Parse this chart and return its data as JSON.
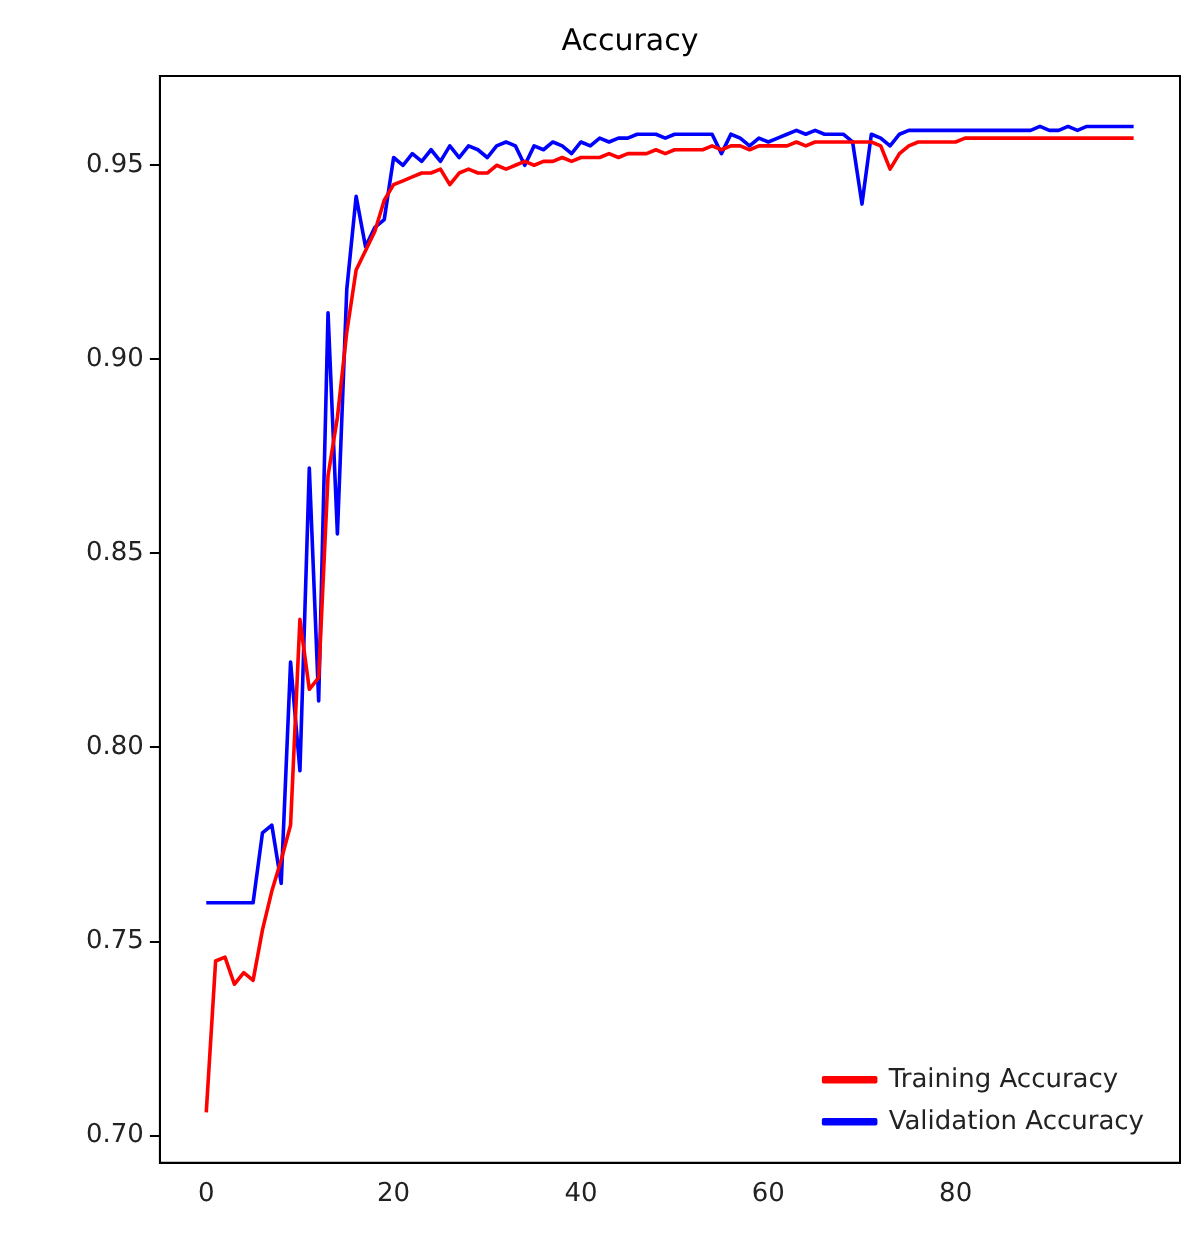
{
  "chart_data": {
    "type": "line",
    "title": "Accuracy",
    "x": [
      0,
      1,
      2,
      3,
      4,
      5,
      6,
      7,
      8,
      9,
      10,
      11,
      12,
      13,
      14,
      15,
      16,
      17,
      18,
      19,
      20,
      21,
      22,
      23,
      24,
      25,
      26,
      27,
      28,
      29,
      30,
      31,
      32,
      33,
      34,
      35,
      36,
      37,
      38,
      39,
      40,
      41,
      42,
      43,
      44,
      45,
      46,
      47,
      48,
      49,
      50,
      51,
      52,
      53,
      54,
      55,
      56,
      57,
      58,
      59,
      60,
      61,
      62,
      63,
      64,
      65,
      66,
      67,
      68,
      69,
      70,
      71,
      72,
      73,
      74,
      75,
      76,
      77,
      78,
      79,
      80,
      81,
      82,
      83,
      84,
      85,
      86,
      87,
      88,
      89,
      90,
      91,
      92,
      93,
      94,
      95,
      96,
      97,
      98,
      99
    ],
    "series": [
      {
        "name": "Training Accuracy",
        "color": "#ff0000",
        "values": [
          0.706,
          0.745,
          0.746,
          0.739,
          0.742,
          0.74,
          0.753,
          0.763,
          0.771,
          0.78,
          0.833,
          0.815,
          0.818,
          0.87,
          0.885,
          0.907,
          0.923,
          0.928,
          0.933,
          0.941,
          0.945,
          0.946,
          0.947,
          0.948,
          0.948,
          0.949,
          0.945,
          0.948,
          0.949,
          0.948,
          0.948,
          0.95,
          0.949,
          0.95,
          0.951,
          0.95,
          0.951,
          0.951,
          0.952,
          0.951,
          0.952,
          0.952,
          0.952,
          0.953,
          0.952,
          0.953,
          0.953,
          0.953,
          0.954,
          0.953,
          0.954,
          0.954,
          0.954,
          0.954,
          0.955,
          0.954,
          0.955,
          0.955,
          0.954,
          0.955,
          0.955,
          0.955,
          0.955,
          0.956,
          0.955,
          0.956,
          0.956,
          0.956,
          0.956,
          0.956,
          0.956,
          0.956,
          0.955,
          0.949,
          0.953,
          0.955,
          0.956,
          0.956,
          0.956,
          0.956,
          0.956,
          0.957,
          0.957,
          0.957,
          0.957,
          0.957,
          0.957,
          0.957,
          0.957,
          0.957,
          0.957,
          0.957,
          0.957,
          0.957,
          0.957,
          0.957,
          0.957,
          0.957,
          0.957,
          0.957
        ]
      },
      {
        "name": "Validation Accuracy",
        "color": "#0000ff",
        "values": [
          0.76,
          0.76,
          0.76,
          0.76,
          0.76,
          0.76,
          0.778,
          0.78,
          0.765,
          0.822,
          0.794,
          0.872,
          0.812,
          0.912,
          0.855,
          0.918,
          0.942,
          0.929,
          0.934,
          0.936,
          0.952,
          0.95,
          0.953,
          0.951,
          0.954,
          0.951,
          0.955,
          0.952,
          0.955,
          0.954,
          0.952,
          0.955,
          0.956,
          0.955,
          0.95,
          0.955,
          0.954,
          0.956,
          0.955,
          0.953,
          0.956,
          0.955,
          0.957,
          0.956,
          0.957,
          0.957,
          0.958,
          0.958,
          0.958,
          0.957,
          0.958,
          0.958,
          0.958,
          0.958,
          0.958,
          0.953,
          0.958,
          0.957,
          0.955,
          0.957,
          0.956,
          0.957,
          0.958,
          0.959,
          0.958,
          0.959,
          0.958,
          0.958,
          0.958,
          0.956,
          0.94,
          0.958,
          0.957,
          0.955,
          0.958,
          0.959,
          0.959,
          0.959,
          0.959,
          0.959,
          0.959,
          0.959,
          0.959,
          0.959,
          0.959,
          0.959,
          0.959,
          0.959,
          0.959,
          0.96,
          0.959,
          0.959,
          0.96,
          0.959,
          0.96,
          0.96,
          0.96,
          0.96,
          0.96,
          0.96
        ]
      }
    ],
    "xlim": [
      -4.95,
      103.95
    ],
    "xticks": [
      0,
      20,
      40,
      60,
      80
    ],
    "ylim": [
      0.693,
      0.973
    ],
    "yticks": [
      {
        "value": 0.7,
        "label": "0.70"
      },
      {
        "value": 0.75,
        "label": "0.75"
      },
      {
        "value": 0.8,
        "label": "0.80"
      },
      {
        "value": 0.85,
        "label": "0.85"
      },
      {
        "value": 0.9,
        "label": "0.90"
      },
      {
        "value": 0.95,
        "label": "0.95"
      }
    ],
    "grid": false,
    "legend": "bottom right",
    "marker": "none",
    "line_style": "solid"
  }
}
